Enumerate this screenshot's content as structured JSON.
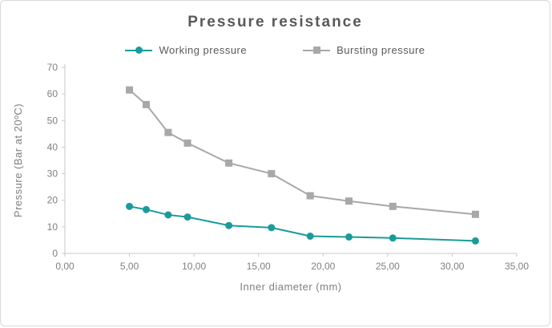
{
  "chart": {
    "title": "Pressure resistance",
    "accent_color": "#1a9b9b",
    "secondary_color": "#a8a8a8",
    "axis_color": "#c9c9c9",
    "text_color": "#7f7f7f"
  },
  "chart_data": {
    "type": "line",
    "title": "Pressure resistance",
    "xlabel": "Inner diameter (mm)",
    "ylabel": "Pressure (Bar at 20ºC)",
    "xlim": [
      0,
      35
    ],
    "ylim": [
      0,
      70
    ],
    "grid": false,
    "legend_position": "top",
    "x_tick_values": [
      0,
      5,
      10,
      15,
      20,
      25,
      30,
      35
    ],
    "x_tick_labels": [
      "0,00",
      "5,00",
      "10,00",
      "15,00",
      "20,00",
      "25,00",
      "30,00",
      "35,00"
    ],
    "y_tick_values": [
      0,
      10,
      20,
      30,
      40,
      50,
      60,
      70
    ],
    "y_tick_labels": [
      "0",
      "10",
      "20",
      "30",
      "40",
      "50",
      "60",
      "70"
    ],
    "x": [
      5.0,
      6.3,
      8.0,
      9.5,
      12.7,
      16.0,
      19.0,
      22.0,
      25.4,
      31.8
    ],
    "series": [
      {
        "name": "Working pressure",
        "color": "#1a9b9b",
        "marker": "circle",
        "values": [
          17.7,
          16.5,
          14.5,
          13.7,
          10.5,
          9.7,
          6.5,
          6.2,
          5.8,
          4.7
        ]
      },
      {
        "name": "Bursting pressure",
        "color": "#a8a8a8",
        "marker": "square",
        "values": [
          61.5,
          56.0,
          45.5,
          41.5,
          34.0,
          30.0,
          21.7,
          19.7,
          17.7,
          14.7
        ]
      }
    ]
  }
}
